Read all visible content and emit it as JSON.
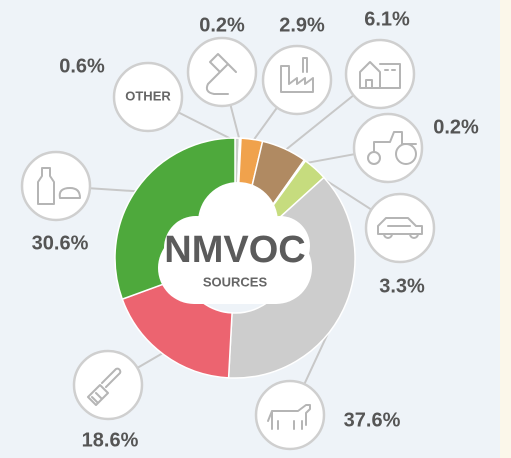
{
  "chart_data": {
    "type": "donut",
    "center_title": "NMVOC",
    "center_subtitle": "SOURCES",
    "categories": [
      "OTHER",
      null,
      null,
      null,
      null,
      null,
      null,
      null,
      null
    ],
    "values": [
      0.6,
      0.2,
      2.9,
      6.1,
      0.2,
      3.3,
      37.6,
      18.6,
      30.6
    ],
    "value_labels": [
      "0.6%",
      "0.2%",
      "2.9%",
      "6.1%",
      "0.2%",
      "3.3%",
      "37.6%",
      "18.6%",
      "30.6%"
    ],
    "colors": [
      "#c9cfc9",
      "#7f9fb3",
      "#f0a24c",
      "#b08a62",
      "#8fa35a",
      "#c6dc7e",
      "#cdcdcd",
      "#ec6470",
      "#4ea93c"
    ]
  }
}
